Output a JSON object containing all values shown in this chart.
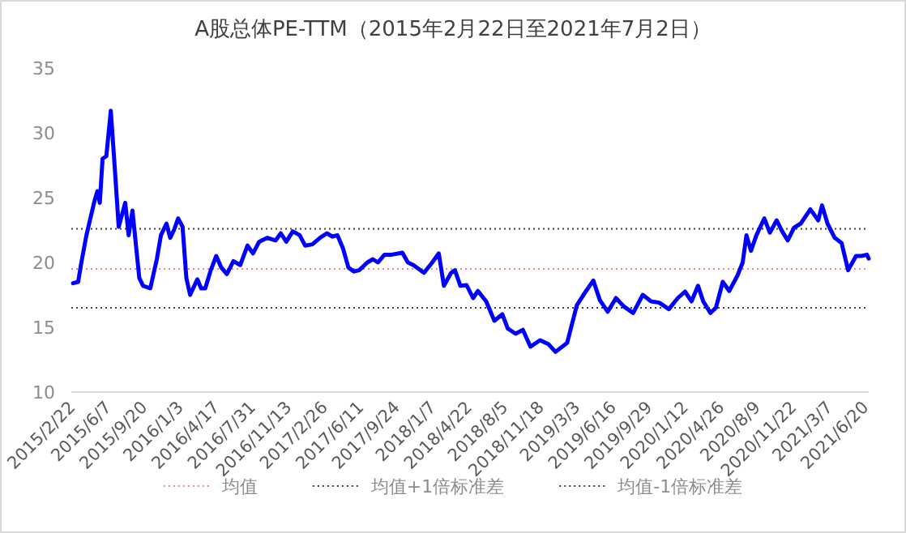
{
  "chart_data": {
    "type": "line",
    "title": "A股总体PE-TTM（2015年2月22日至2021年7月2日）",
    "x": [
      "2015-02-27",
      "2015-03-14",
      "2015-03-22",
      "2015-04-07",
      "2015-05-01",
      "2015-05-09",
      "2015-05-16",
      "2015-05-24",
      "2015-06-04",
      "2015-06-17",
      "2015-06-28",
      "2015-07-10",
      "2015-07-29",
      "2015-08-08",
      "2015-08-19",
      "2015-09-08",
      "2015-09-19",
      "2015-10-10",
      "2015-10-29",
      "2015-11-10",
      "2015-11-26",
      "2015-12-07",
      "2015-12-18",
      "2015-12-30",
      "2016-01-12",
      "2016-01-23",
      "2016-02-03",
      "2016-02-24",
      "2016-03-06",
      "2016-03-18",
      "2016-04-03",
      "2016-04-19",
      "2016-05-04",
      "2016-05-20",
      "2016-06-08",
      "2016-06-28",
      "2016-07-19",
      "2016-08-04",
      "2016-08-22",
      "2016-09-15",
      "2016-10-09",
      "2016-10-24",
      "2016-11-09",
      "2016-11-28",
      "2016-12-18",
      "2017-01-03",
      "2017-01-24",
      "2017-02-15",
      "2017-03-07",
      "2017-03-23",
      "2017-04-07",
      "2017-04-23",
      "2017-05-09",
      "2017-05-25",
      "2017-06-09",
      "2017-07-03",
      "2017-07-19",
      "2017-08-03",
      "2017-08-22",
      "2017-09-12",
      "2017-10-13",
      "2017-10-29",
      "2017-11-14",
      "2017-12-15",
      "2018-01-08",
      "2018-01-27",
      "2018-02-11",
      "2018-03-04",
      "2018-03-15",
      "2018-03-31",
      "2018-04-18",
      "2018-05-07",
      "2018-05-21",
      "2018-06-14",
      "2018-07-08",
      "2018-07-31",
      "2018-08-16",
      "2018-09-08",
      "2018-09-29",
      "2018-10-21",
      "2018-11-18",
      "2018-12-12",
      "2019-01-02",
      "2019-02-05",
      "2019-03-05",
      "2019-04-01",
      "2019-04-22",
      "2019-05-11",
      "2019-06-03",
      "2019-06-27",
      "2019-07-20",
      "2019-08-16",
      "2019-09-13",
      "2019-10-07",
      "2019-10-31",
      "2019-11-28",
      "2019-12-24",
      "2020-01-14",
      "2020-02-02",
      "2020-02-21",
      "2020-03-07",
      "2020-03-28",
      "2020-04-13",
      "2020-05-03",
      "2020-05-22",
      "2020-06-15",
      "2020-06-30",
      "2020-07-11",
      "2020-07-24",
      "2020-08-09",
      "2020-09-01",
      "2020-09-17",
      "2020-10-07",
      "2020-10-23",
      "2020-11-08",
      "2020-11-27",
      "2020-12-16",
      "2021-01-13",
      "2021-02-05",
      "2021-02-16",
      "2021-03-04",
      "2021-03-25",
      "2021-04-14",
      "2021-05-03",
      "2021-05-26",
      "2021-06-11",
      "2021-06-27",
      "2021-07-02"
    ],
    "series": [
      {
        "color": "#0000ff",
        "values": [
          18.4,
          18.5,
          19.8,
          22.1,
          24.8,
          25.5,
          24.6,
          28.0,
          28.2,
          31.7,
          27.5,
          22.75,
          24.6,
          22.1,
          24.0,
          18.8,
          18.2,
          18.0,
          20.25,
          22.1,
          23.0,
          21.9,
          22.5,
          23.4,
          22.75,
          18.8,
          17.5,
          18.7,
          18.0,
          18.0,
          19.4,
          20.5,
          19.6,
          19.1,
          20.1,
          19.8,
          21.3,
          20.7,
          21.6,
          21.9,
          21.7,
          22.25,
          21.6,
          22.4,
          22.1,
          21.3,
          21.4,
          21.9,
          22.25,
          22.0,
          22.1,
          21.1,
          19.6,
          19.3,
          19.4,
          20.0,
          20.25,
          20.0,
          20.6,
          20.6,
          20.75,
          20.0,
          19.8,
          19.2,
          20.0,
          20.7,
          18.2,
          19.2,
          19.4,
          18.2,
          18.25,
          17.25,
          17.8,
          17.0,
          15.5,
          16.0,
          14.9,
          14.5,
          14.8,
          13.5,
          14.0,
          13.7,
          13.1,
          13.8,
          16.7,
          17.8,
          18.6,
          17.1,
          16.2,
          17.25,
          16.6,
          16.1,
          17.5,
          17.0,
          16.9,
          16.4,
          17.25,
          17.75,
          17.0,
          18.2,
          17.0,
          16.1,
          16.5,
          18.5,
          17.8,
          19.0,
          20.0,
          22.1,
          20.9,
          22.1,
          23.4,
          22.3,
          23.25,
          22.4,
          21.7,
          22.7,
          23.0,
          24.1,
          23.25,
          24.4,
          23.0,
          21.9,
          21.5,
          19.4,
          20.5,
          20.5,
          20.6,
          20.3
        ]
      }
    ],
    "xlim": [
      "2015-02-22",
      "2021-07-02"
    ],
    "xticks": [
      {
        "value": "2015-02-22",
        "label": "2015/2/22"
      },
      {
        "value": "2015-06-07",
        "label": "2015/6/7"
      },
      {
        "value": "2015-09-20",
        "label": "2015/9/20"
      },
      {
        "value": "2016-01-03",
        "label": "2016/1/3"
      },
      {
        "value": "2016-04-17",
        "label": "2016/4/17"
      },
      {
        "value": "2016-07-31",
        "label": "2016/7/31"
      },
      {
        "value": "2016-11-13",
        "label": "2016/11/13"
      },
      {
        "value": "2017-02-26",
        "label": "2017/2/26"
      },
      {
        "value": "2017-06-11",
        "label": "2017/6/11"
      },
      {
        "value": "2017-09-24",
        "label": "2017/9/24"
      },
      {
        "value": "2018-01-07",
        "label": "2018/1/7"
      },
      {
        "value": "2018-04-22",
        "label": "2018/4/22"
      },
      {
        "value": "2018-08-05",
        "label": "2018/8/5"
      },
      {
        "value": "2018-11-18",
        "label": "2018/11/18"
      },
      {
        "value": "2019-03-03",
        "label": "2019/3/3"
      },
      {
        "value": "2019-06-16",
        "label": "2019/6/16"
      },
      {
        "value": "2019-09-29",
        "label": "2019/9/29"
      },
      {
        "value": "2020-01-12",
        "label": "2020/1/12"
      },
      {
        "value": "2020-04-26",
        "label": "2020/4/26"
      },
      {
        "value": "2020-08-09",
        "label": "2020/8/9"
      },
      {
        "value": "2020-11-22",
        "label": "2020/11/22"
      },
      {
        "value": "2021-03-07",
        "label": "2021/3/7"
      },
      {
        "value": "2021-06-20",
        "label": "2021/6/20"
      }
    ],
    "ylim": [
      10,
      35
    ],
    "yticks": [
      10,
      15,
      20,
      25,
      30,
      35
    ],
    "ref_lines": [
      {
        "axis": "y",
        "value": 19.5,
        "label": "均值",
        "color": "#ff8080",
        "line_style": "dotted"
      },
      {
        "axis": "y",
        "value": 22.6,
        "label": "均值+1倍标准差",
        "color": "#404040",
        "line_style": "dotted"
      },
      {
        "axis": "y",
        "value": 16.5,
        "label": "均值-1倍标准差",
        "color": "#404040",
        "line_style": "dotted"
      }
    ],
    "legend": "bottom",
    "line_style": "solid"
  }
}
